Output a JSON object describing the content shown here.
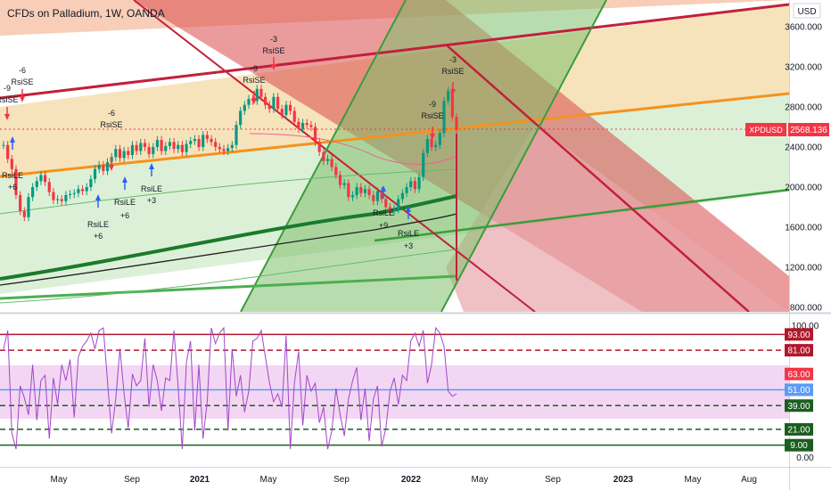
{
  "header": {
    "title": "CFDs on Palladium, 1W, OANDA"
  },
  "price_axis": {
    "unit": "USD",
    "ticks": [
      "3600.000",
      "3200.000",
      "2800.000",
      "2400.000",
      "2000.000",
      "1600.000",
      "1200.000",
      "800.000"
    ]
  },
  "current_price": {
    "symbol": "XPDUSD",
    "value": "2568.136",
    "color": "#f23645"
  },
  "rsi_axis": {
    "ticks": [
      "100.00",
      "0.00"
    ],
    "levels": [
      {
        "label": "93.00",
        "value": 93,
        "color": "#b2182b",
        "style": "solid"
      },
      {
        "label": "81.00",
        "value": 81,
        "color": "#b2182b",
        "style": "dashed"
      },
      {
        "label": "63.00",
        "value": 63,
        "color": "#f23645",
        "style": "none"
      },
      {
        "label": "51.00",
        "value": 51,
        "color": "#5b9cf6",
        "style": "solid"
      },
      {
        "label": "39.00",
        "value": 39,
        "color": "#1b5e20",
        "style": "dashed"
      },
      {
        "label": "21.00",
        "value": 21,
        "color": "#1b5e20",
        "style": "dashed"
      },
      {
        "label": "9.00",
        "value": 9,
        "color": "#1b5e20",
        "style": "solid"
      }
    ]
  },
  "time_axis": {
    "ticks": [
      "May",
      "Sep",
      "2021",
      "May",
      "Sep",
      "2022",
      "May",
      "Sep",
      "2023",
      "May",
      "Aug"
    ]
  },
  "signals": [
    {
      "text": "-9",
      "side": "up"
    },
    {
      "text": "RsiSE",
      "side": "up"
    },
    {
      "text": "-6",
      "side": "up"
    },
    {
      "text": "RsiSE",
      "side": "up"
    },
    {
      "text": "RsiLE",
      "side": "down"
    },
    {
      "text": "+6",
      "side": "down"
    },
    {
      "text": "-6",
      "side": "up"
    },
    {
      "text": "RsiSE",
      "side": "up"
    },
    {
      "text": "RsiLE",
      "side": "down"
    },
    {
      "text": "+6",
      "side": "down"
    },
    {
      "text": "RsiLE",
      "side": "down"
    },
    {
      "text": "+6",
      "side": "down"
    },
    {
      "text": "RsiLE",
      "side": "down"
    },
    {
      "text": "+3",
      "side": "down"
    },
    {
      "text": "-9",
      "side": "up"
    },
    {
      "text": "RsiSE",
      "side": "up"
    },
    {
      "text": "-3",
      "side": "up"
    },
    {
      "text": "RsiSE",
      "side": "up"
    },
    {
      "text": "RsiLE",
      "side": "down"
    },
    {
      "text": "+9",
      "side": "down"
    },
    {
      "text": "RsiLE",
      "side": "down"
    },
    {
      "text": "+3",
      "side": "down"
    },
    {
      "text": "-9",
      "side": "up"
    },
    {
      "text": "RsiSE",
      "side": "up"
    },
    {
      "text": "-3",
      "side": "up"
    },
    {
      "text": "RsiSE",
      "side": "up"
    }
  ],
  "chart_data": {
    "type": "line",
    "price_range": [
      800,
      3800
    ],
    "price_series": [
      2420,
      2280,
      2180,
      1920,
      1760,
      1700,
      1900,
      2000,
      2060,
      2120,
      2050,
      1950,
      1870,
      1880,
      1860,
      1920,
      1930,
      1940,
      1980,
      1960,
      2000,
      2080,
      2180,
      2220,
      2160,
      2250,
      2300,
      2380,
      2290,
      2360,
      2320,
      2420,
      2360,
      2440,
      2400,
      2330,
      2400,
      2470,
      2360,
      2410,
      2450,
      2380,
      2420,
      2350,
      2430,
      2460,
      2480,
      2400,
      2520,
      2480,
      2450,
      2400,
      2380,
      2360,
      2390,
      2420,
      2620,
      2760,
      2820,
      2880,
      2860,
      2980,
      2900,
      2820,
      2780,
      2900,
      2780,
      2720,
      2820,
      2760,
      2650,
      2580,
      2640,
      2620,
      2600,
      2450,
      2350,
      2260,
      2280,
      2200,
      2120,
      2020,
      2040,
      1900,
      1920,
      2000,
      1940,
      1980,
      1920,
      1860,
      1960,
      1880,
      1800,
      1760,
      1780,
      1880,
      1940,
      2000,
      2060,
      1980,
      2100,
      2340,
      2480,
      2400,
      2420,
      2540,
      2860,
      2960,
      2700,
      2568
    ],
    "rsi_series": [
      82,
      96,
      18,
      6,
      54,
      45,
      32,
      70,
      28,
      58,
      62,
      14,
      60,
      40,
      70,
      58,
      74,
      30,
      76,
      84,
      88,
      94,
      82,
      96,
      98,
      58,
      18,
      44,
      82,
      48,
      22,
      63,
      54,
      58,
      90,
      38,
      70,
      58,
      35,
      60,
      58,
      96,
      54,
      6,
      72,
      88,
      20,
      70,
      14,
      42,
      98,
      86,
      94,
      98,
      20,
      82,
      46,
      62,
      34,
      50,
      88,
      90,
      96,
      76,
      56,
      42,
      48,
      38,
      92,
      6,
      56,
      80,
      24,
      62,
      50,
      56,
      26,
      38,
      6,
      20,
      52,
      32,
      16,
      44,
      58,
      68,
      28,
      52,
      12,
      44,
      54,
      8,
      22,
      50,
      60,
      40,
      62,
      58,
      88,
      94,
      84,
      96,
      56,
      70,
      98,
      94,
      84,
      50,
      46,
      48
    ],
    "rsi_range": [
      0,
      100
    ]
  }
}
